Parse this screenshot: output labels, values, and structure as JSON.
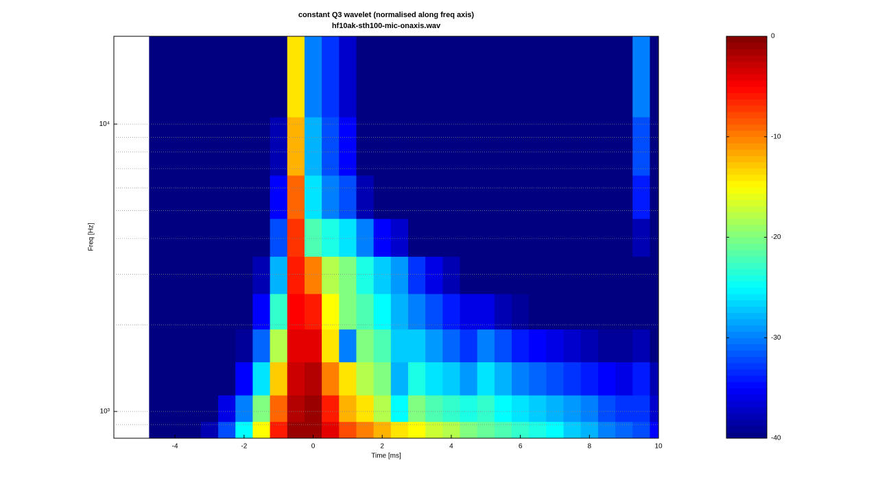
{
  "chart_data": {
    "type": "heatmap",
    "title": "constant Q3 wavelet (normalised along freq axis)",
    "subtitle": "hf10ak-sth100-mic-onaxis.wav",
    "x_label": "Time [ms]",
    "y_label": "Freq [Hz]",
    "xlim": [
      -5.77,
      10
    ],
    "xticks": [
      -4,
      -2,
      0,
      2,
      4,
      6,
      8,
      10
    ],
    "ylim": [
      807,
      20200
    ],
    "log_y": true,
    "yticks": [
      {
        "value": 1000,
        "label": "10³"
      },
      {
        "value": 10000,
        "label": "10⁴"
      }
    ],
    "yminorticks": [
      900,
      2000,
      3000,
      4000,
      5000,
      6000,
      7000,
      8000,
      9000
    ],
    "colormap": "jet",
    "clim": [
      -40,
      0
    ],
    "cticks": [
      0,
      -10,
      -20,
      -30,
      -40
    ],
    "x": [
      -4.5,
      -4,
      -3.5,
      -3,
      -2.5,
      -2,
      -1.5,
      -1,
      -0.5,
      0,
      0.5,
      1,
      1.5,
      2,
      2.5,
      3,
      3.5,
      4,
      4.5,
      5,
      5.5,
      6,
      6.5,
      7,
      7.5,
      8,
      8.5,
      9,
      9.5,
      10
    ],
    "y": [
      850,
      1000,
      1300,
      1700,
      2200,
      3000,
      4000,
      5500,
      8000,
      14000
    ],
    "z": [
      [
        -40,
        -40,
        -40,
        -38,
        -32,
        -25,
        -15,
        -6,
        -1,
        -1,
        -4,
        -8,
        -10,
        -12,
        -14,
        -15,
        -17,
        -18,
        -20,
        -21,
        -22,
        -23,
        -24,
        -25,
        -27,
        -28,
        -30,
        -31,
        -32,
        -35
      ],
      [
        -40,
        -40,
        -40,
        -40,
        -36,
        -30,
        -20,
        -9,
        -2,
        -1,
        -6,
        -12,
        -14,
        -18,
        -25,
        -20,
        -22,
        -23,
        -24,
        -23,
        -25,
        -26,
        -27,
        -28,
        -29,
        -30,
        -32,
        -33,
        -33,
        -37
      ],
      [
        -40,
        -40,
        -40,
        -40,
        -40,
        -35,
        -26,
        -13,
        -3,
        -2,
        -10,
        -14,
        -18,
        -20,
        -28,
        -24,
        -26,
        -27,
        -29,
        -26,
        -28,
        -30,
        -31,
        -32,
        -33,
        -34,
        -35,
        -36,
        -34,
        -38
      ],
      [
        -40,
        -40,
        -40,
        -40,
        -40,
        -39,
        -31,
        -18,
        -4,
        -4,
        -14,
        -30,
        -20,
        -22,
        -27,
        -27,
        -29,
        -31,
        -33,
        -30,
        -32,
        -34,
        -35,
        -36,
        -37,
        -38,
        -39,
        -39,
        -38,
        -40
      ],
      [
        -40,
        -40,
        -40,
        -40,
        -40,
        -40,
        -35,
        -23,
        -5,
        -6,
        -15,
        -20,
        -22,
        -25,
        -28,
        -30,
        -32,
        -34,
        -36,
        -36,
        -38,
        -39,
        -40,
        -40,
        -40,
        -40,
        -40,
        -40,
        -40,
        -40
      ],
      [
        -40,
        -40,
        -40,
        -40,
        -40,
        -40,
        -38,
        -28,
        -6,
        -10,
        -18,
        -20,
        -24,
        -27,
        -29,
        -33,
        -36,
        -38,
        -40,
        -40,
        -40,
        -40,
        -40,
        -40,
        -40,
        -40,
        -40,
        -40,
        -40,
        -40
      ],
      [
        -40,
        -40,
        -40,
        -40,
        -40,
        -40,
        -40,
        -32,
        -7,
        -22,
        -24,
        -26,
        -30,
        -35,
        -37,
        -40,
        -40,
        -40,
        -40,
        -40,
        -40,
        -40,
        -40,
        -40,
        -40,
        -40,
        -40,
        -40,
        -38,
        -40
      ],
      [
        -40,
        -40,
        -40,
        -40,
        -40,
        -40,
        -40,
        -35,
        -9,
        -26,
        -30,
        -32,
        -38,
        -40,
        -40,
        -40,
        -40,
        -40,
        -40,
        -40,
        -40,
        -40,
        -40,
        -40,
        -40,
        -40,
        -40,
        -40,
        -34,
        -40
      ],
      [
        -40,
        -40,
        -40,
        -40,
        -40,
        -40,
        -40,
        -38,
        -12,
        -28,
        -32,
        -35,
        -40,
        -40,
        -40,
        -40,
        -40,
        -40,
        -40,
        -40,
        -40,
        -40,
        -40,
        -40,
        -40,
        -40,
        -40,
        -40,
        -32,
        -40
      ],
      [
        -40,
        -40,
        -40,
        -40,
        -40,
        -40,
        -40,
        -40,
        -14,
        -30,
        -33,
        -37,
        -40,
        -40,
        -40,
        -40,
        -40,
        -40,
        -40,
        -40,
        -40,
        -40,
        -40,
        -40,
        -40,
        -40,
        -40,
        -40,
        -30,
        -40
      ]
    ]
  }
}
